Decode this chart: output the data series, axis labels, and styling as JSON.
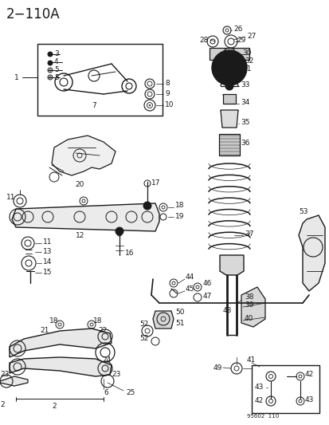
{
  "title": "2−110A",
  "bg_color": "#ffffff",
  "line_color": "#1a1a1a",
  "label_color": "#1a1a1a",
  "part_number_stamp": "95602  110",
  "figsize": [
    4.14,
    5.33
  ],
  "dpi": 100,
  "lfs": 6.5
}
